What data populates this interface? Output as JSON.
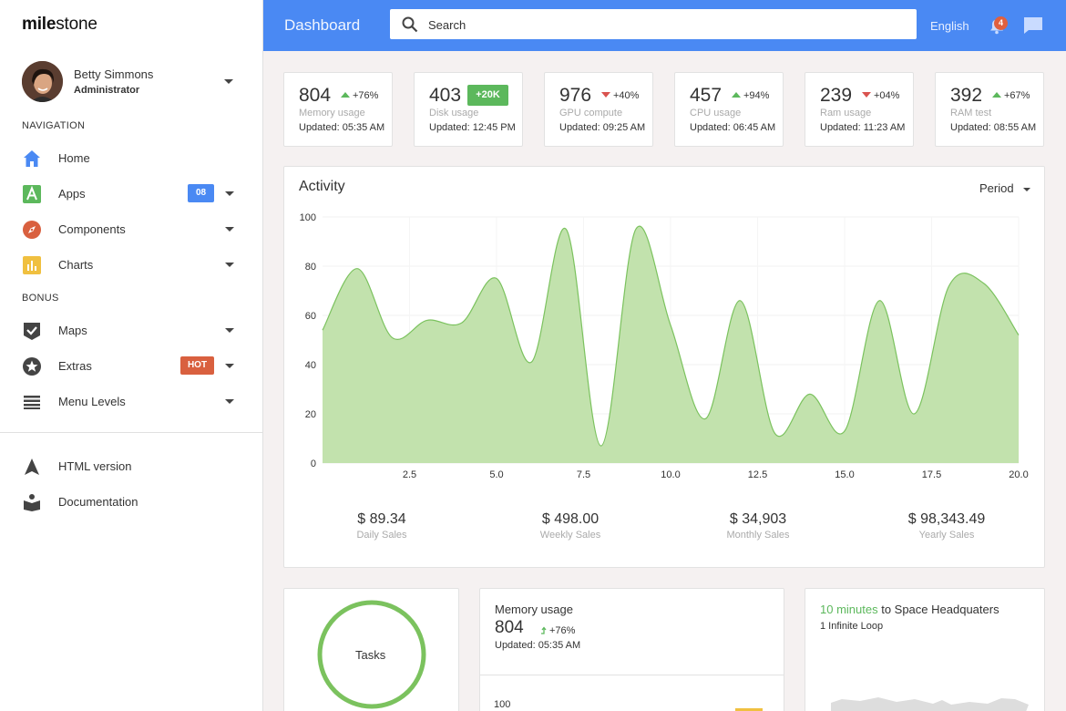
{
  "app": {
    "logo_bold": "mile",
    "logo_rest": "stone"
  },
  "user": {
    "name": "Betty Simmons",
    "role": "Administrator"
  },
  "sidebar": {
    "section_navigation": "NAVIGATION",
    "section_bonus": "BONUS",
    "items": [
      {
        "label": "Home",
        "icon": "home-icon"
      },
      {
        "label": "Apps",
        "icon": "apps-icon",
        "badge": "08",
        "badge_color": "#4a89f3"
      },
      {
        "label": "Components",
        "icon": "compass-icon"
      },
      {
        "label": "Charts",
        "icon": "chart-icon"
      },
      {
        "label": "Maps",
        "icon": "check-shield-icon"
      },
      {
        "label": "Extras",
        "icon": "star-icon",
        "badge": "HOT",
        "badge_color": "#d9603f"
      },
      {
        "label": "Menu Levels",
        "icon": "menu-icon"
      },
      {
        "label": "HTML version",
        "icon": "arrow-icon"
      },
      {
        "label": "Documentation",
        "icon": "book-icon"
      }
    ]
  },
  "topbar": {
    "title": "Dashboard",
    "search_placeholder": "Search",
    "language": "English",
    "notification_count": "4",
    "accent": "#4a89f3"
  },
  "stats": [
    {
      "value": "804",
      "change": "+76%",
      "direction": "up",
      "label": "Memory usage",
      "updated": "Updated: 05:35 AM"
    },
    {
      "value": "403",
      "chip": "+20K",
      "label": "Disk usage",
      "updated": "Updated: 12:45 PM"
    },
    {
      "value": "976",
      "change": "+40%",
      "direction": "down",
      "label": "GPU compute",
      "updated": "Updated: 09:25 AM"
    },
    {
      "value": "457",
      "change": "+94%",
      "direction": "up",
      "label": "CPU usage",
      "updated": "Updated: 06:45 AM"
    },
    {
      "value": "239",
      "change": "+04%",
      "direction": "down",
      "label": "Ram usage",
      "updated": "Updated: 11:23 AM"
    },
    {
      "value": "392",
      "change": "+67%",
      "direction": "up",
      "label": "RAM test",
      "updated": "Updated: 08:55 AM"
    }
  ],
  "activity": {
    "title": "Activity",
    "period_label": "Period",
    "sales": [
      {
        "value": "$ 89.34",
        "label": "Daily Sales"
      },
      {
        "value": "$ 498.00",
        "label": "Weekly Sales"
      },
      {
        "value": "$ 34,903",
        "label": "Monthly Sales"
      },
      {
        "value": "$ 98,343.49",
        "label": "Yearly Sales"
      }
    ]
  },
  "chart_data": {
    "type": "area",
    "x": [
      0,
      1,
      2,
      3,
      4,
      5,
      6,
      7,
      8,
      9,
      10,
      11,
      12,
      13,
      14,
      15,
      16,
      17,
      18,
      19,
      20
    ],
    "values": [
      54,
      79,
      51,
      58,
      57,
      75,
      41,
      95,
      7,
      95,
      56,
      18,
      66,
      12,
      28,
      13,
      66,
      20,
      72,
      73,
      52
    ],
    "xlim": [
      0,
      20
    ],
    "ylim": [
      0,
      100
    ],
    "x_ticks": [
      "2.5",
      "5.0",
      "7.5",
      "10.0",
      "12.5",
      "15.0",
      "17.5",
      "20.0"
    ],
    "y_ticks": [
      "0",
      "20",
      "40",
      "60",
      "80",
      "100"
    ],
    "fill_color": "#c2e2ad",
    "line_color": "#7bc25e",
    "grid": true
  },
  "tasks": {
    "label": "Tasks"
  },
  "memory_card": {
    "title": "Memory usage",
    "value": "804",
    "change": "+76%",
    "updated": "Updated:  05:35 AM",
    "axis_top": "100"
  },
  "map_card": {
    "title_green": "10 minutes",
    "title_rest": " to Space Headquaters",
    "address": "1 Infinite Loop"
  }
}
